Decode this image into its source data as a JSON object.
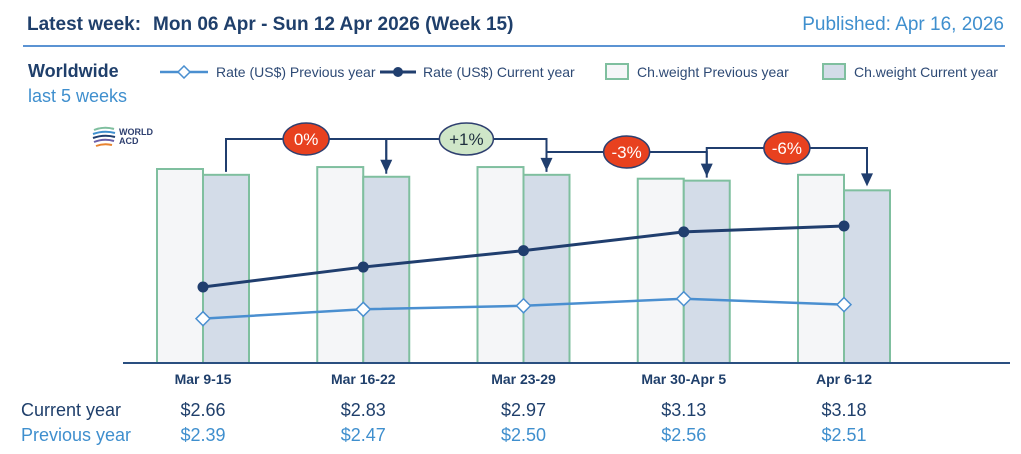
{
  "header": {
    "latest_week_label": "Latest week:",
    "latest_week_value": "Mon 06 Apr - Sun 12 Apr 2026 (Week 15)",
    "published": "Published: Apr 16, 2026"
  },
  "region": "Worldwide",
  "period": "last 5 weeks",
  "logo": {
    "line1": "WORLD",
    "line2": "ACD"
  },
  "legend": [
    {
      "label": "Rate (US$) Previous year",
      "icon": "line-diamond-open-icon"
    },
    {
      "label": "Rate (US$) Current year",
      "icon": "line-dot-filled-icon"
    },
    {
      "label": "Ch.weight Previous year",
      "icon": "box-light-icon"
    },
    {
      "label": "Ch.weight Current year",
      "icon": "box-shaded-icon"
    }
  ],
  "colors": {
    "title": "#1f3f6b",
    "accent": "#3f8fce",
    "rate_current": "#203e6e",
    "rate_previous": "#4a8fd0",
    "bar_border": "#7fbf9f",
    "bar_prev_fill": "#f5f6f8",
    "bar_cur_fill": "#d3dce8",
    "badge_negative": "#e8411f",
    "badge_positive": "#cfe6c8",
    "arrow": "#203e6e"
  },
  "table": {
    "current_label": "Current year",
    "previous_label": "Previous year"
  },
  "chart_data": {
    "type": "bar",
    "title": "Worldwide last 5 weeks",
    "categories": [
      "Mar 9-15",
      "Mar 16-22",
      "Mar 23-29",
      "Mar 30-Apr 5",
      "Apr 6-12"
    ],
    "series": [
      {
        "name": "Ch.weight Previous year",
        "type": "bar",
        "values": [
          100,
          101,
          101,
          95,
          97
        ]
      },
      {
        "name": "Ch.weight Current year",
        "type": "bar",
        "values": [
          97,
          96,
          97,
          94,
          89
        ]
      },
      {
        "name": "Rate (US$) Previous year",
        "type": "line",
        "marker": "diamond-open",
        "values": [
          2.39,
          2.47,
          2.5,
          2.56,
          2.51
        ]
      },
      {
        "name": "Rate (US$) Current year",
        "type": "line",
        "marker": "dot-filled",
        "values": [
          2.66,
          2.83,
          2.97,
          3.13,
          3.18
        ]
      }
    ],
    "current_year_rates": [
      "$2.66",
      "$2.83",
      "$2.97",
      "$3.13",
      "$3.18"
    ],
    "previous_year_rates": [
      "$2.39",
      "$2.47",
      "$2.50",
      "$2.56",
      "$2.51"
    ],
    "week_over_week_changes": [
      {
        "from": "Mar 9-15",
        "to": "Mar 16-22",
        "label": "0%",
        "sign": "negative"
      },
      {
        "from": "Mar 16-22",
        "to": "Mar 23-29",
        "label": "+1%",
        "sign": "positive"
      },
      {
        "from": "Mar 23-29",
        "to": "Mar 30-Apr 5",
        "label": "-3%",
        "sign": "negative"
      },
      {
        "from": "Mar 30-Apr 5",
        "to": "Apr 6-12",
        "label": "-6%",
        "sign": "negative"
      }
    ],
    "weight_axis": [
      0,
      100
    ],
    "rate_axis": [
      2.01,
      3.5
    ],
    "xlabel": "",
    "ylabel": "",
    "grid": false,
    "legend_position": "top"
  }
}
